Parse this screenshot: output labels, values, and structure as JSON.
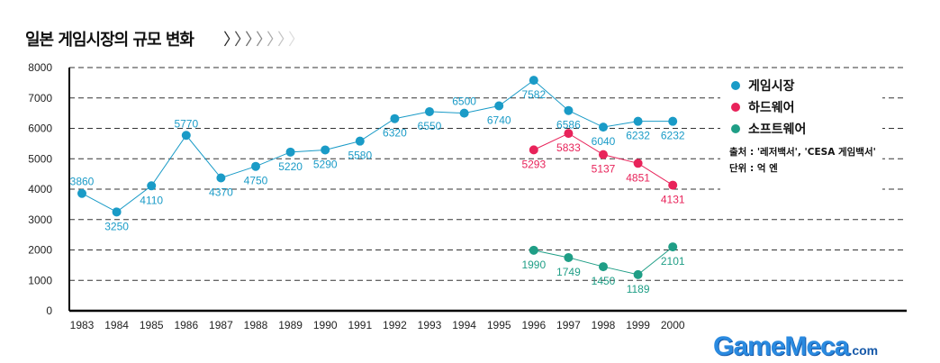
{
  "title": "일본 게임시장의 규모 변화",
  "title_decoration": "〉〉〉〉〉〉〉",
  "chart_data": {
    "type": "line",
    "title": "일본 게임시장의 규모 변화",
    "xlabel": "",
    "ylabel": "",
    "ylim": [
      0,
      8000
    ],
    "yticks": [
      "0",
      "1000",
      "2000",
      "3000",
      "4000",
      "5000",
      "6000",
      "7000",
      "8000"
    ],
    "categories": [
      "1983",
      "1984",
      "1985",
      "1986",
      "1987",
      "1988",
      "1989",
      "1990",
      "1991",
      "1992",
      "1993",
      "1994",
      "1995",
      "1996",
      "1997",
      "1998",
      "1999",
      "2000"
    ],
    "grid": "horizontal dashed",
    "legend_position": "right",
    "series": [
      {
        "name": "게임시장",
        "color": "#1a9bc7",
        "values": [
          3860,
          3250,
          4110,
          5770,
          4370,
          4750,
          5220,
          5290,
          5580,
          6320,
          6550,
          6500,
          6740,
          7582,
          6586,
          6040,
          6232,
          6232
        ]
      },
      {
        "name": "하드웨어",
        "color": "#e8235a",
        "values": [
          null,
          null,
          null,
          null,
          null,
          null,
          null,
          null,
          null,
          null,
          null,
          null,
          null,
          5293,
          5833,
          5137,
          4851,
          4131
        ]
      },
      {
        "name": "소프트웨어",
        "color": "#1f9e86",
        "values": [
          null,
          null,
          null,
          null,
          null,
          null,
          null,
          null,
          null,
          null,
          null,
          null,
          null,
          1990,
          1749,
          1450,
          1189,
          2101
        ]
      }
    ],
    "annotations": [
      "출처 : '레저백서', 'CESA 게임백서'",
      "단위 : 억 엔"
    ]
  },
  "logo": {
    "main": "GameMeca",
    "domain": ".com"
  }
}
